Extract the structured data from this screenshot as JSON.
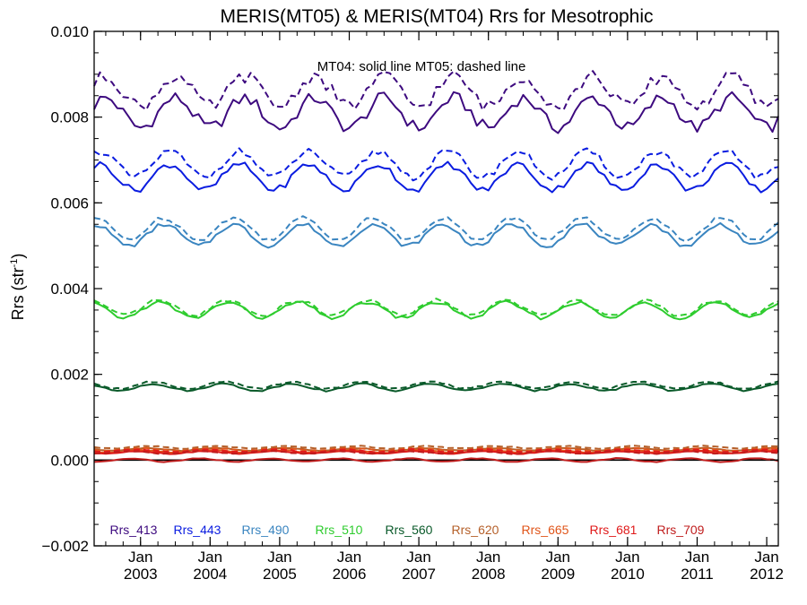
{
  "chart_data": {
    "type": "line",
    "title": "MERIS(MT05) & MERIS(MT04)  Rrs for Mesotrophic",
    "annotation": "MT04: solid line   MT05: dashed line",
    "ylabel": "Rrs (str",
    "ylabel_sup": "-1",
    "ylabel_close": ")",
    "xlabel": "",
    "ylim": [
      -0.002,
      0.01
    ],
    "xlim": [
      "2002-05-01",
      "2012-03-01"
    ],
    "yticks": [
      -0.002,
      0.0,
      0.002,
      0.004,
      0.006,
      0.008,
      0.01
    ],
    "ytick_labels": [
      "−0.002",
      "0.000",
      "0.002",
      "0.004",
      "0.006",
      "0.008",
      "0.010"
    ],
    "xtick_month_label": "Jan",
    "xticks": [
      "2003",
      "2004",
      "2005",
      "2006",
      "2007",
      "2008",
      "2009",
      "2010",
      "2011",
      "2012"
    ],
    "zero_line": true,
    "grid": false,
    "legend_position": "bottom",
    "legend_style": "colored text labels in one row",
    "series_note": "Monthly mean Rrs; each band drawn as MT04 (solid) and MT05 (dashed)",
    "series": [
      {
        "name": "Rrs_413",
        "color": "#3d0a7f",
        "MT04": {
          "base": 0.0081,
          "amp": 0.00035,
          "noise": 0.00015
        },
        "MT05": {
          "base": 0.0086,
          "amp": 0.00035,
          "noise": 0.00015
        }
      },
      {
        "name": "Rrs_443",
        "color": "#0a1ce0",
        "MT04": {
          "base": 0.0066,
          "amp": 0.0003,
          "noise": 8e-05
        },
        "MT05": {
          "base": 0.0069,
          "amp": 0.0003,
          "noise": 8e-05
        }
      },
      {
        "name": "Rrs_490",
        "color": "#3a85c0",
        "MT04": {
          "base": 0.00525,
          "amp": 0.00025,
          "noise": 5e-05
        },
        "MT05": {
          "base": 0.0054,
          "amp": 0.00025,
          "noise": 5e-05
        }
      },
      {
        "name": "Rrs_510",
        "color": "#2ecc2e",
        "MT04": {
          "base": 0.0035,
          "amp": 0.00018,
          "noise": 4e-05
        },
        "MT05": {
          "base": 0.00355,
          "amp": 0.00018,
          "noise": 4e-05
        }
      },
      {
        "name": "Rrs_560",
        "color": "#0a5a2a",
        "MT04": {
          "base": 0.0017,
          "amp": 8e-05,
          "noise": 2e-05
        },
        "MT05": {
          "base": 0.00175,
          "amp": 8e-05,
          "noise": 2e-05
        }
      },
      {
        "name": "Rrs_620",
        "color": "#b5602a",
        "MT04": {
          "base": 0.00025,
          "amp": 3e-05,
          "noise": 1e-05
        },
        "MT05": {
          "base": 0.0003,
          "amp": 3e-05,
          "noise": 1e-05
        }
      },
      {
        "name": "Rrs_665",
        "color": "#e0551a",
        "MT04": {
          "base": 0.0002,
          "amp": 3e-05,
          "noise": 1e-05
        },
        "MT05": {
          "base": 0.00025,
          "amp": 3e-05,
          "noise": 1e-05
        }
      },
      {
        "name": "Rrs_681",
        "color": "#e01a1a",
        "MT04": {
          "base": 0.00018,
          "amp": 3e-05,
          "noise": 1e-05
        },
        "MT05": {
          "base": 0.00022,
          "amp": 3e-05,
          "noise": 1e-05
        }
      },
      {
        "name": "Rrs_709",
        "color": "#c01e1e",
        "MT04": {
          "base": 0.0,
          "amp": 4e-05,
          "noise": 1e-05
        },
        "MT05": {
          "base": 0.00018,
          "amp": 3e-05,
          "noise": 1e-05
        }
      }
    ]
  }
}
